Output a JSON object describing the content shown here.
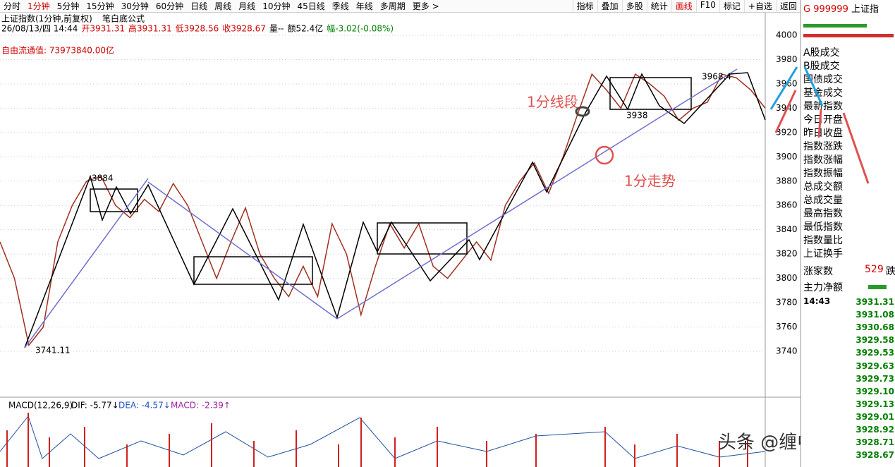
{
  "toolbar": {
    "periods": [
      "分时",
      "1分钟",
      "5分钟",
      "15分钟",
      "30分钟",
      "60分钟",
      "日线",
      "周线",
      "月线",
      "10分钟",
      "45日线",
      "季线",
      "年线",
      "多周期",
      "更多 >"
    ],
    "tools": [
      "指标",
      "叠加",
      "多股",
      "统计",
      "画线",
      "F10",
      "标记",
      "+自选",
      "返回"
    ]
  },
  "header": {
    "title": "上证指数(1分钟,前复权)",
    "formula": "笔白底公式",
    "quote": [
      {
        "text": "26/08/13/四 14:44",
        "color": "#000000"
      },
      {
        "text": "开3931.31",
        "color": "#d00000"
      },
      {
        "text": "高3931.31",
        "color": "#d00000"
      },
      {
        "text": "低3928.56",
        "color": "#d00000"
      },
      {
        "text": "收3928.67",
        "color": "#d00000"
      },
      {
        "text": "量--",
        "color": "#000000"
      },
      {
        "text": "额52.4亿",
        "color": "#000000"
      },
      {
        "text": "幅-3.02(-0.08%)",
        "color": "#008000"
      }
    ],
    "float_value": "自由流通值: 73973840.00亿"
  },
  "chart_data": {
    "type": "line",
    "color": "#a03020",
    "values": [
      3830,
      3800,
      3745,
      3760,
      3830,
      3860,
      3880,
      3884,
      3860,
      3850,
      3865,
      3855,
      3878,
      3860,
      3830,
      3800,
      3830,
      3858,
      3820,
      3800,
      3785,
      3810,
      3785,
      3845,
      3820,
      3770,
      3810,
      3845,
      3825,
      3845,
      3810,
      3800,
      3815,
      3830,
      3815,
      3860,
      3880,
      3895,
      3870,
      3900,
      3935,
      3968,
      3955,
      3940,
      3968,
      3960,
      3950,
      3930,
      3940,
      3945,
      3968,
      3965,
      3955,
      3940
    ],
    "ylim": [
      3704,
      4018
    ],
    "yticks": [
      4000,
      3980,
      3960,
      3940,
      3920,
      3900,
      3880,
      3860,
      3840,
      3820,
      3800,
      3780,
      3760,
      3740
    ],
    "grid": true,
    "annotations": [
      "3884",
      "3741.11",
      "3938",
      "3968.4"
    ],
    "notes": [
      "1分线段",
      "1分走势"
    ]
  },
  "macd": {
    "label": "MACD(12,26,9)",
    "dif": "DIF: -5.77↓",
    "dea": "DEA: -4.57↓",
    "macd": "MACD: -2.39↑"
  },
  "watermark": "头条 @缠中修行",
  "panel": {
    "code": "G",
    "symbol": "999999",
    "name": "上证指",
    "fields": [
      "A股成交",
      "B股成交",
      "国债成交",
      "基金成交",
      "最新指数",
      "今日开盘",
      "昨日收盘",
      "指数涨跌",
      "指数涨幅",
      "指数振幅",
      "总成交额",
      "总成交量",
      "最高指数",
      "最低指数",
      "指数量比",
      "上证换手"
    ],
    "up_label": "涨家数",
    "up_count": "529",
    "down_label": "跌",
    "flow_label": "主力净额",
    "time": "14:43",
    "ticks": [
      "3931.31",
      "3931.08",
      "3930.68",
      "3929.58",
      "3929.53",
      "3929.63",
      "3929.73",
      "3929.10",
      "3929.13",
      "3929.01",
      "3928.92",
      "3928.71",
      "3928.67"
    ]
  }
}
